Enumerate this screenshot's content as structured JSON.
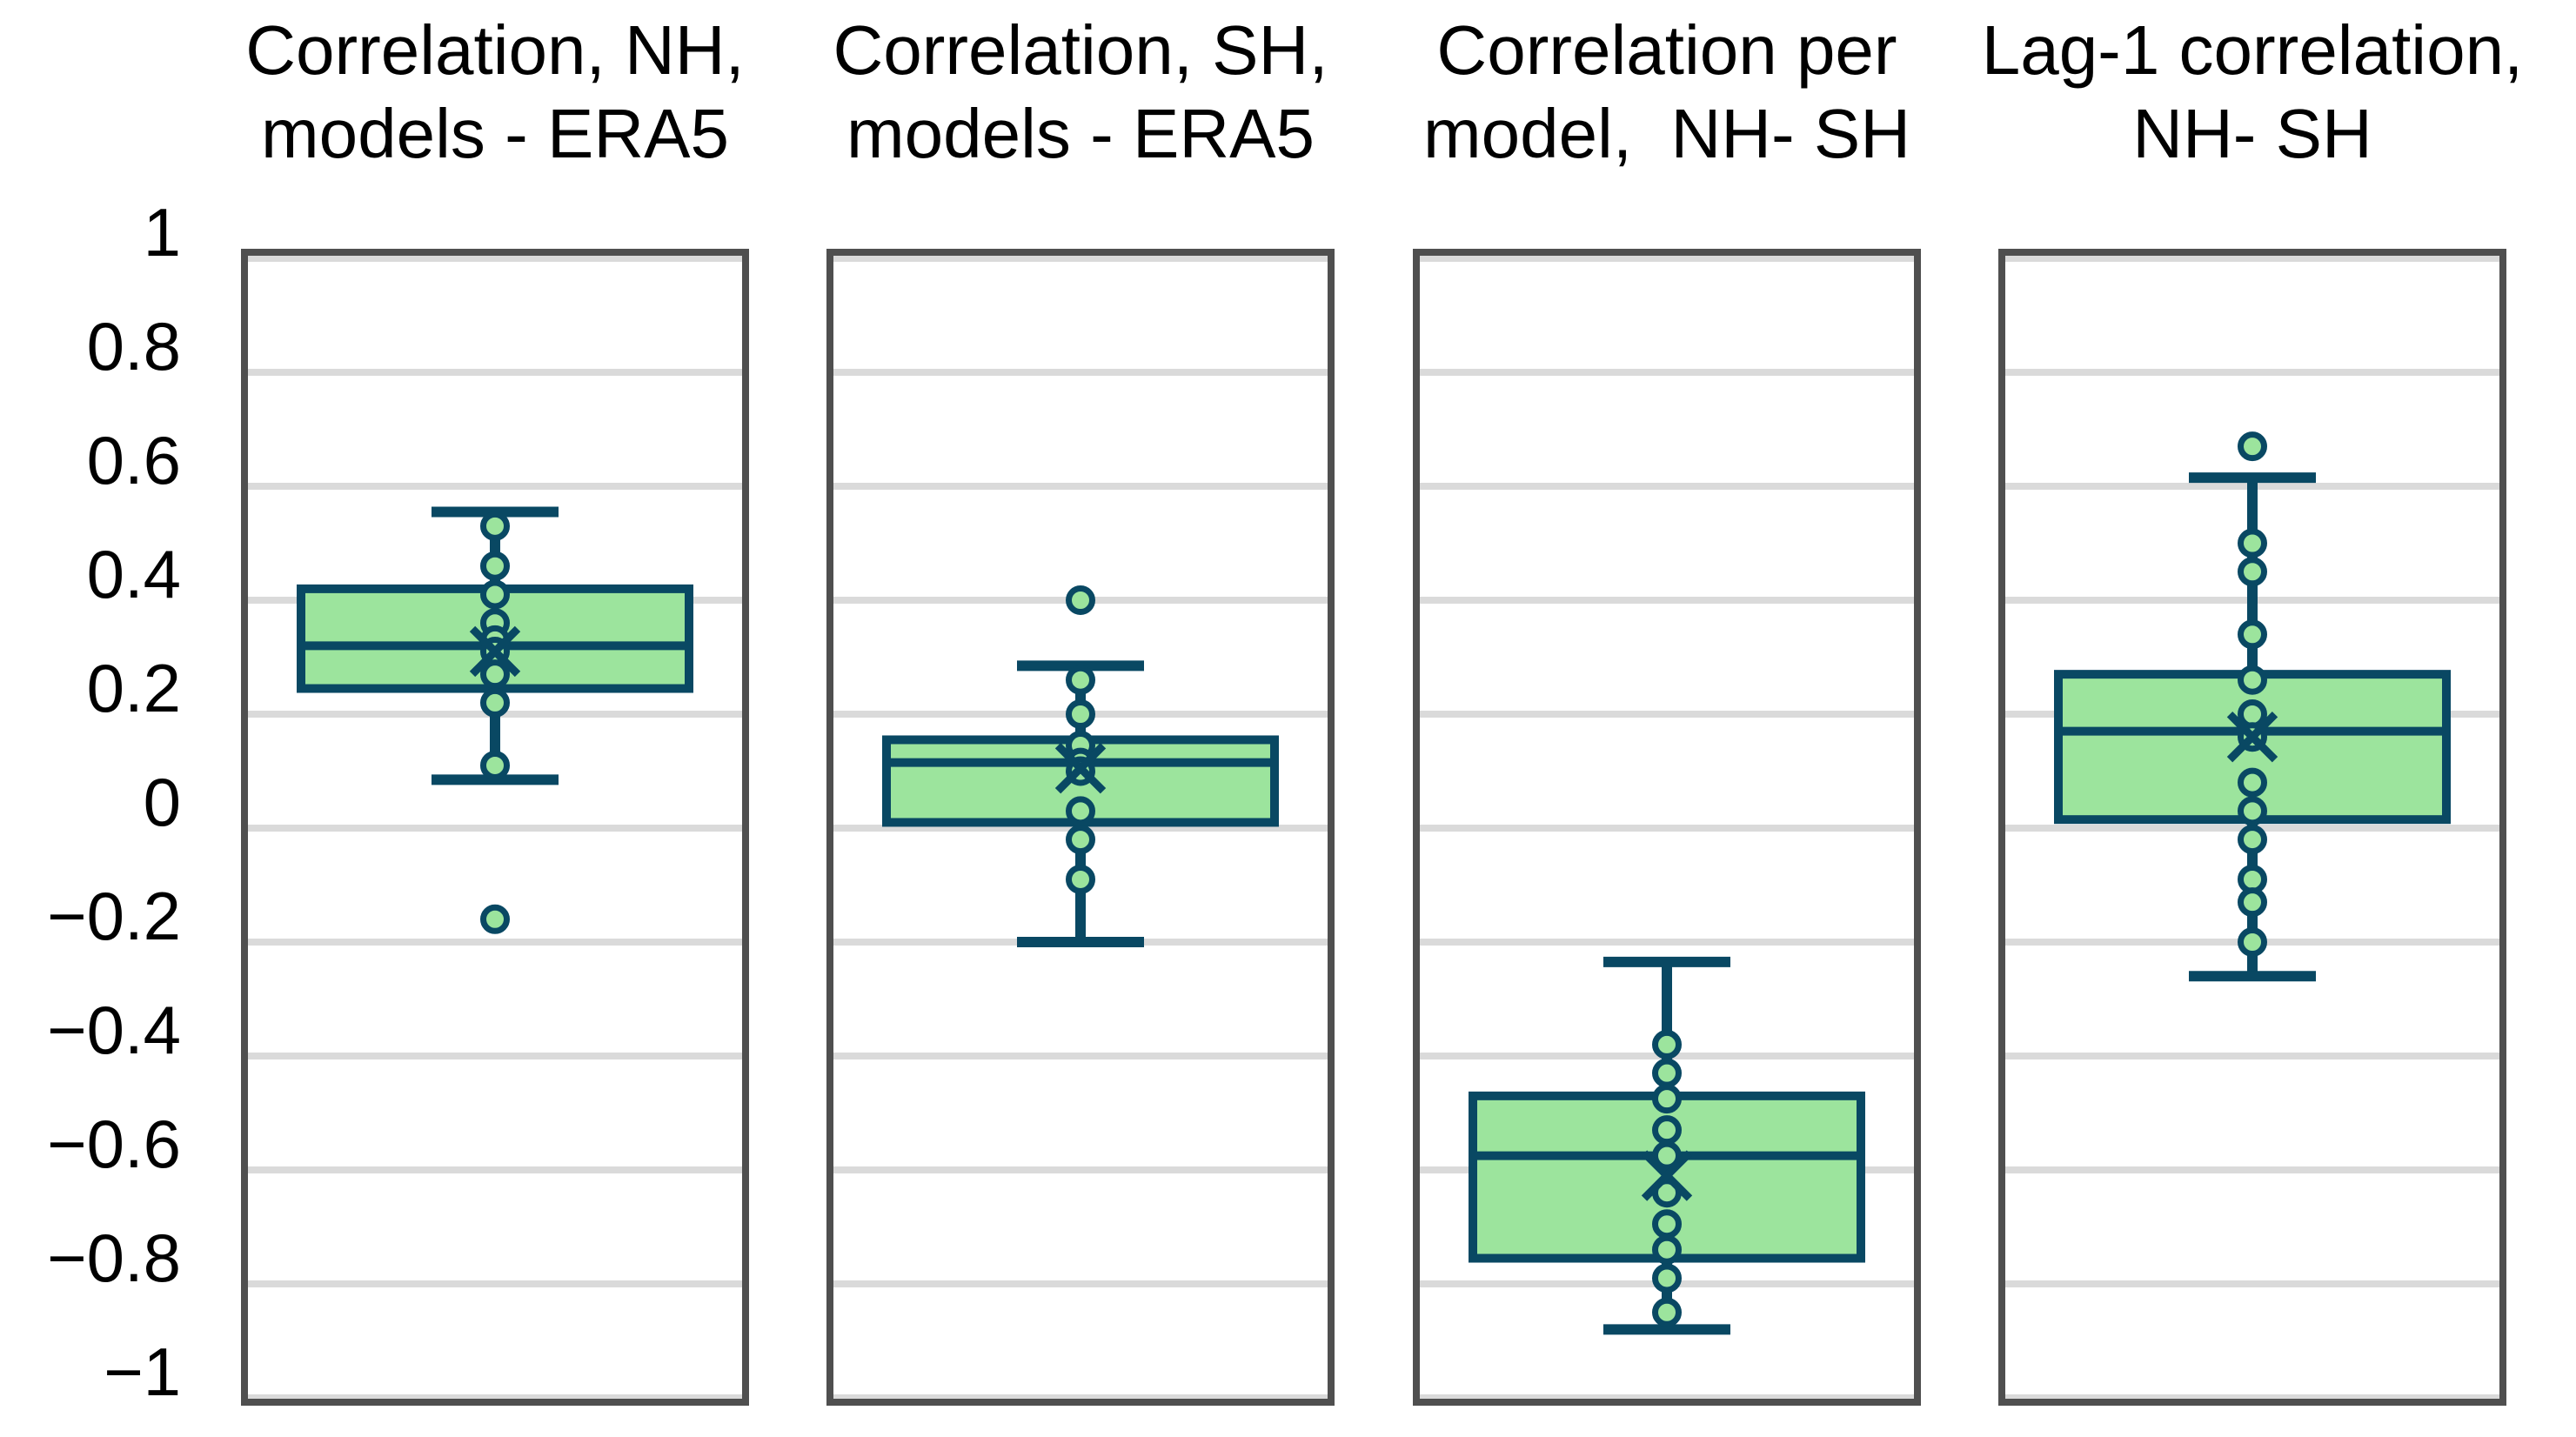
{
  "colors": {
    "box_fill": "#9CE49D",
    "accent_dark_teal": "#094863",
    "gridline": "#DADADA",
    "frame_border": "#4F4F4F",
    "text": "#000000",
    "background": "#FFFFFF"
  },
  "y_axis": {
    "tick_values": [
      1,
      0.8,
      0.6,
      0.4,
      0.2,
      0,
      -0.2,
      -0.4,
      -0.6,
      -0.8,
      -1
    ],
    "tick_labels": [
      "1",
      "0.8",
      "0.6",
      "0.4",
      "0.2",
      "0",
      "−0.2",
      "−0.4",
      "−0.6",
      "−0.8",
      "−1"
    ]
  },
  "chart_data": {
    "type": "box",
    "ylim": [
      -1,
      1
    ],
    "ytick_step": 0.2,
    "grid": true,
    "legend": false,
    "mean_marker": "x",
    "panels": [
      {
        "title_lines": [
          "Correlation, NH,",
          "models - ERA5"
        ],
        "stats": {
          "whisker_low": 0.085,
          "q1": 0.245,
          "median": 0.32,
          "q3": 0.42,
          "whisker_high": 0.555,
          "mean": 0.31
        },
        "points": [
          0.53,
          0.46,
          0.41,
          0.36,
          0.33,
          0.31,
          0.27,
          0.22,
          0.11
        ],
        "outliers": [
          -0.16
        ]
      },
      {
        "title_lines": [
          "Correlation, SH,",
          "models - ERA5"
        ],
        "stats": {
          "whisker_low": -0.2,
          "q1": 0.01,
          "median": 0.115,
          "q3": 0.155,
          "whisker_high": 0.285,
          "mean": 0.105
        },
        "points": [
          0.26,
          0.2,
          0.145,
          0.115,
          0.1,
          0.03,
          -0.02,
          -0.09
        ],
        "outliers": [
          0.4
        ]
      },
      {
        "title_lines": [
          "Correlation per",
          "model,  NH- SH"
        ],
        "stats": {
          "whisker_low": -0.88,
          "q1": -0.755,
          "median": -0.575,
          "q3": -0.47,
          "whisker_high": -0.235,
          "mean": -0.61
        },
        "points": [
          -0.38,
          -0.43,
          -0.475,
          -0.53,
          -0.575,
          -0.64,
          -0.695,
          -0.74,
          -0.79,
          -0.85
        ],
        "outliers": []
      },
      {
        "title_lines": [
          "Lag-1 correlation,",
          "NH- SH"
        ],
        "stats": {
          "whisker_low": -0.26,
          "q1": 0.015,
          "median": 0.17,
          "q3": 0.27,
          "whisker_high": 0.615,
          "mean": 0.16
        },
        "points": [
          0.5,
          0.45,
          0.34,
          0.26,
          0.2,
          0.16,
          0.08,
          0.03,
          -0.02,
          -0.09,
          -0.13,
          -0.2
        ],
        "outliers": [
          0.67
        ]
      }
    ]
  }
}
